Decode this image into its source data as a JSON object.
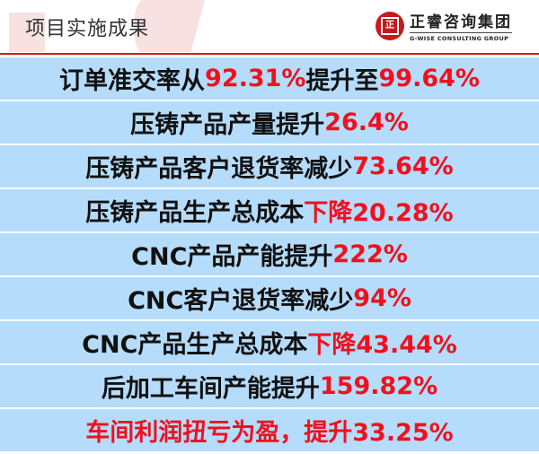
{
  "header": {
    "title": "项目实施成果",
    "logo": {
      "cn": "正睿咨询集团",
      "en": "G-WISE CONSULTING GROUP",
      "seal_glyph": "正"
    }
  },
  "colors": {
    "accent": "#d71920",
    "row_bg": "#b5dcfb",
    "highlight": "#f0101e"
  },
  "rows": [
    {
      "segments": [
        {
          "text": "订单准交率从",
          "red": false
        },
        {
          "text": "92.31%",
          "red": true
        },
        {
          "text": "提升至",
          "red": false
        },
        {
          "text": "99.64%",
          "red": true
        }
      ]
    },
    {
      "segments": [
        {
          "text": "压铸产品产量提升",
          "red": false
        },
        {
          "text": "26.4%",
          "red": true
        }
      ]
    },
    {
      "segments": [
        {
          "text": "压铸产品客户退货率减少",
          "red": false
        },
        {
          "text": "73.64%",
          "red": true
        }
      ]
    },
    {
      "segments": [
        {
          "text": "压铸产品生产总成本",
          "red": false
        },
        {
          "text": "下降20.28%",
          "red": true
        }
      ]
    },
    {
      "segments": [
        {
          "text": "CNC产品产能提升",
          "red": false
        },
        {
          "text": "222%",
          "red": true
        }
      ]
    },
    {
      "segments": [
        {
          "text": "CNC客户退货率减少",
          "red": false
        },
        {
          "text": "94%",
          "red": true
        }
      ]
    },
    {
      "segments": [
        {
          "text": "CNC产品生产总成本",
          "red": false
        },
        {
          "text": "下降43.44%",
          "red": true
        }
      ]
    },
    {
      "segments": [
        {
          "text": "后加工车间产能提升",
          "red": false
        },
        {
          "text": "159.82%",
          "red": true
        }
      ]
    },
    {
      "segments": [
        {
          "text": "车间利润扭亏为盈，提升33.25%",
          "red": true
        }
      ]
    }
  ]
}
